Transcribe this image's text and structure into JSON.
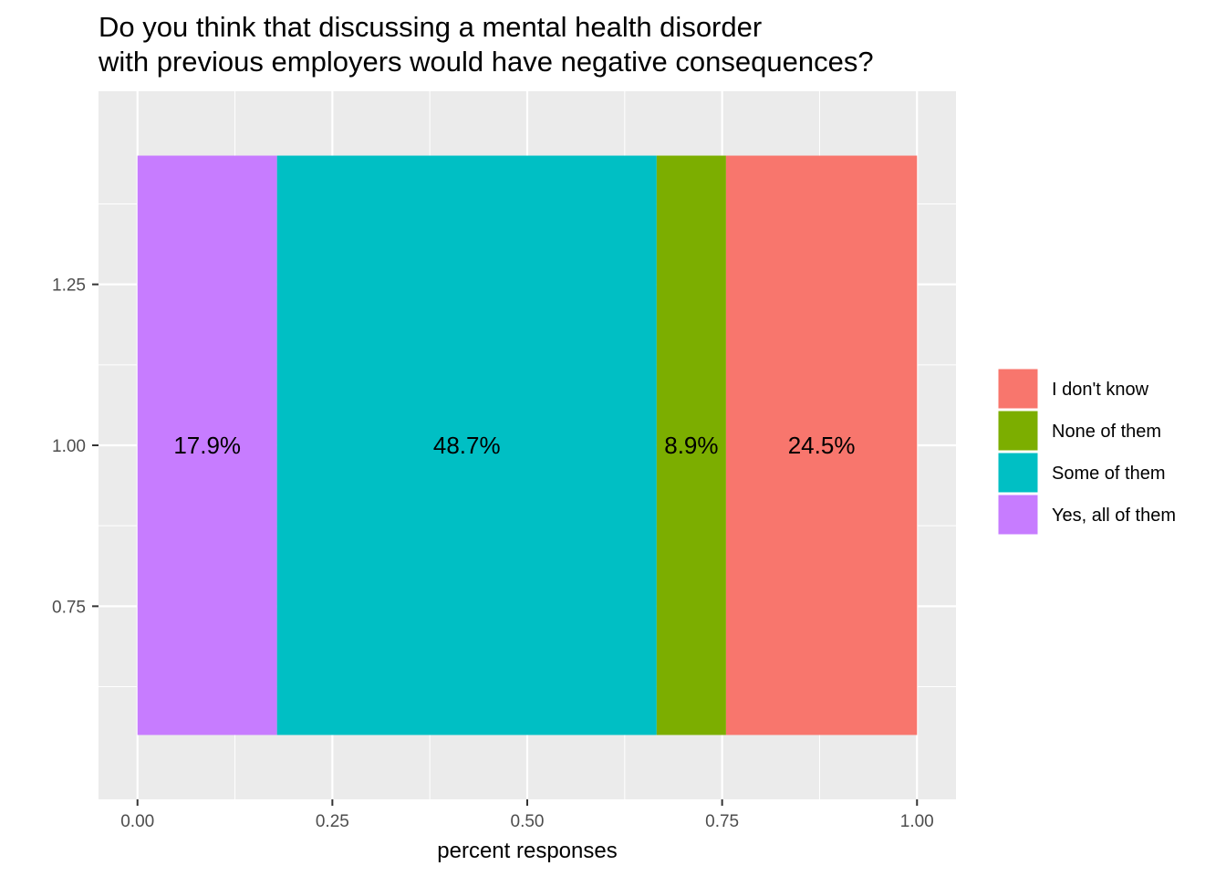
{
  "chart_data": {
    "type": "bar",
    "orientation": "horizontal",
    "stacked": true,
    "title": "Do you think that discussing a mental health disorder with previous employers would have negative consequences?",
    "title_lines": [
      "Do you think that discussing a mental health disorder",
      "with previous employers would have negative consequences?"
    ],
    "xlabel": "percent responses",
    "ylabel": "",
    "xlim": [
      -0.05,
      1.05
    ],
    "ylim": [
      0.45,
      1.55
    ],
    "x_ticks": [
      {
        "value": 0.0,
        "label": "0.00"
      },
      {
        "value": 0.25,
        "label": "0.25"
      },
      {
        "value": 0.5,
        "label": "0.50"
      },
      {
        "value": 0.75,
        "label": "0.75"
      },
      {
        "value": 1.0,
        "label": "1.00"
      }
    ],
    "y_ticks": [
      {
        "value": 0.75,
        "label": "0.75"
      },
      {
        "value": 1.0,
        "label": "1.00"
      },
      {
        "value": 1.25,
        "label": "1.25"
      }
    ],
    "bar_position": 1.0,
    "bar_width": 0.9,
    "stack_order": [
      "Yes, all of them",
      "Some of them",
      "None of them",
      "I don't know"
    ],
    "series": [
      {
        "name": "I don't know",
        "value": 0.245,
        "label": "24.5%",
        "color": "#F8766D"
      },
      {
        "name": "None of them",
        "value": 0.089,
        "label": "8.9%",
        "color": "#7CAE00"
      },
      {
        "name": "Some of them",
        "value": 0.487,
        "label": "48.7%",
        "color": "#00BFC4"
      },
      {
        "name": "Yes, all of them",
        "value": 0.179,
        "label": "17.9%",
        "color": "#C77CFF"
      }
    ],
    "legend_position": "right",
    "grid": true,
    "panel_background": "#EBEBEB",
    "grid_color": "#FFFFFF"
  }
}
